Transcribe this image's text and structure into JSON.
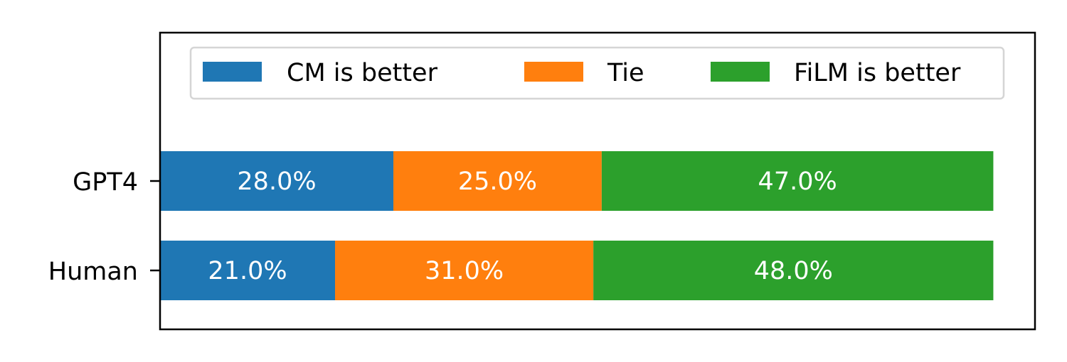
{
  "chart_data": {
    "type": "bar",
    "orientation": "horizontal",
    "stacked": true,
    "categories": [
      "GPT4",
      "Human"
    ],
    "series": [
      {
        "name": "CM is better",
        "values": [
          28.0,
          21.0
        ],
        "labels": [
          "28.0%",
          "21.0%"
        ],
        "color": "#1f77b4"
      },
      {
        "name": "Tie",
        "values": [
          25.0,
          31.0
        ],
        "labels": [
          "25.0%",
          "31.0%"
        ],
        "color": "#ff7f0e"
      },
      {
        "name": "FiLM is better",
        "values": [
          47.0,
          48.0
        ],
        "labels": [
          "47.0%",
          "48.0%"
        ],
        "color": "#2ca02c"
      }
    ],
    "xlim": [
      0,
      105
    ],
    "x_ticks_visible": false,
    "grid": false,
    "legend_placement": "top",
    "title": "",
    "xlabel": "",
    "ylabel": ""
  }
}
